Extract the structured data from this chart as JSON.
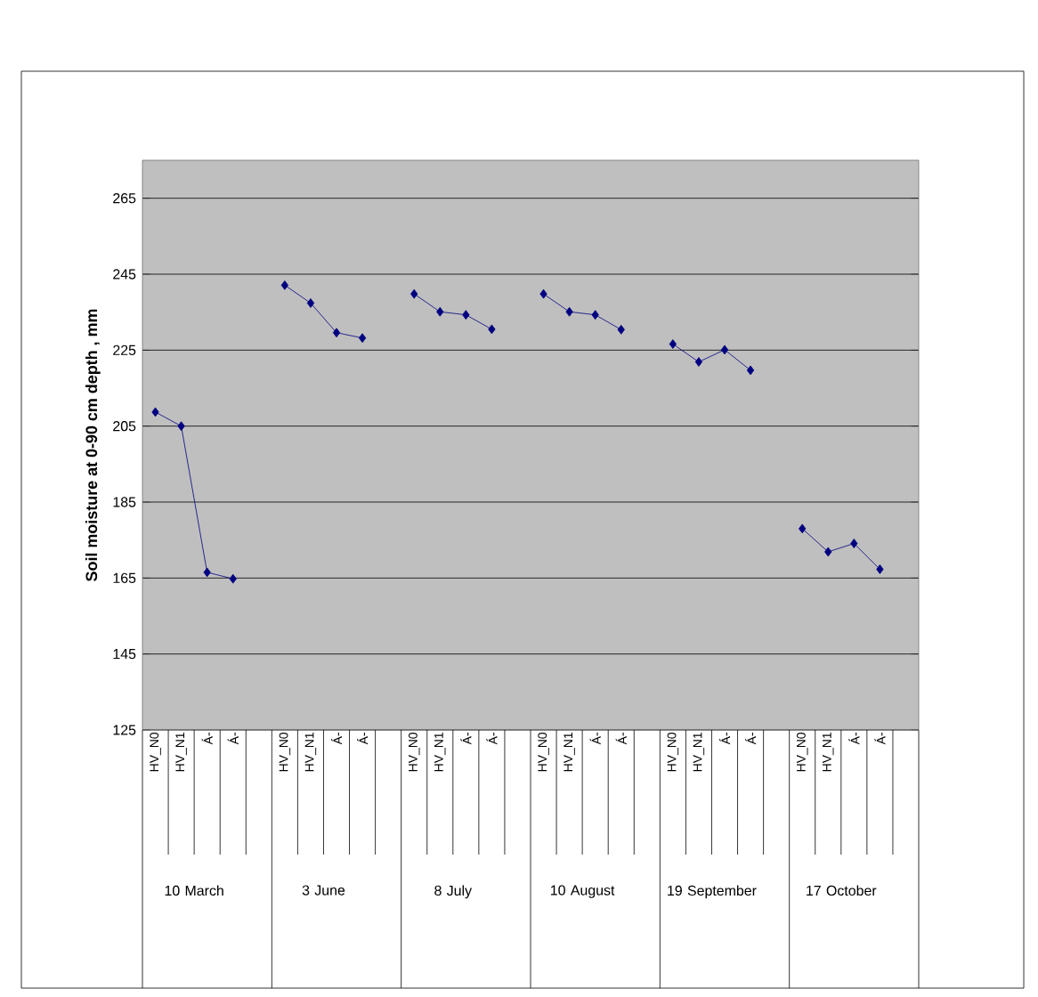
{
  "chart_data": {
    "type": "line",
    "ylabel": "Soil moisture at 0-90 cm depth , mm",
    "categories": [
      "HV_N0",
      "HV_N1",
      "Á-",
      "Á-",
      null,
      "HV_N0",
      "HV_N1",
      "Á-",
      "Á-",
      null,
      "HV_N0",
      "HV_N1",
      "Á-",
      "Á-",
      null,
      "HV_N0",
      "HV_N1",
      "Á-",
      "Á-",
      null,
      "HV_N0",
      "HV_N1",
      "Á-",
      "Á-",
      null,
      "HV_N0",
      "HV_N1",
      "Á-",
      "Á-",
      null
    ],
    "series": [
      {
        "color": "#000080",
        "values": [
          208.7,
          205,
          166.5,
          164.8,
          null,
          242.1,
          237.4,
          229.6,
          228.2,
          null,
          239.8,
          235.1,
          234.3,
          230.5,
          null,
          239.8,
          235.1,
          234.3,
          230.4,
          null,
          226.6,
          221.9,
          225.1,
          219.7,
          null,
          178,
          171.9,
          174.1,
          167.3,
          null
        ]
      }
    ],
    "annotations": [
      "10 March",
      "3 June",
      "8 July",
      "10 August",
      "19 September",
      "17 October"
    ],
    "ylim": [
      125,
      275
    ],
    "yticks": [
      125,
      145,
      165,
      185,
      205,
      225,
      245,
      265
    ],
    "grid": "y",
    "marker": "diamond",
    "line_style": "solid"
  }
}
